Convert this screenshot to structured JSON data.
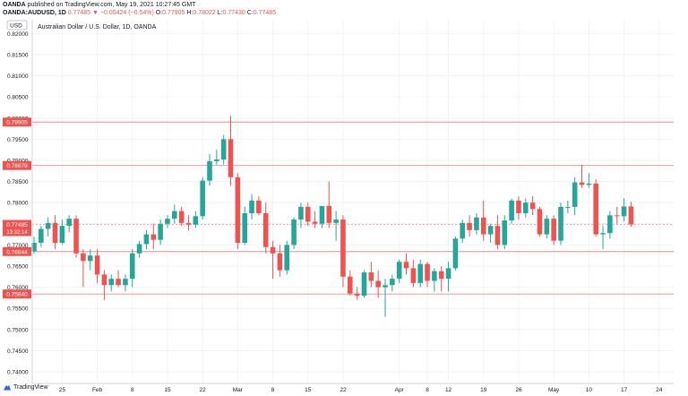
{
  "header": {
    "publisher_prefix": "OANDA",
    "publisher_text": " published on TradingView.com, May 19, 2021 10:27:45 GMT",
    "symbol": "OANDA:AUDUSD, 1D",
    "close_change": "0.77485 ▼ −0.00424 (−0.54%)",
    "o_label": "O:",
    "o_value": "0.77905",
    "h_label": "H:",
    "h_value": "0.78022",
    "l_label": "L:",
    "l_value": "0.77430",
    "c_label": "C:",
    "c_value": "0.77485"
  },
  "footer": {
    "brand": "TradingView"
  },
  "colors": {
    "up": "#26a69a",
    "down": "#ef5350",
    "line": "#f08a8a",
    "grid": "#eef0f3",
    "text": "#131722"
  },
  "chart_data": {
    "type": "candlestick",
    "title": "Australian Dollar / U.S. Dollar, 1D, OANDA",
    "currency_badge": "USD",
    "ylim": [
      0.73725,
      0.82325
    ],
    "y_ticks": [
      "0.82000",
      "0.81500",
      "0.81000",
      "0.80500",
      "0.80000",
      "0.79500",
      "0.79000",
      "0.78500",
      "0.78000",
      "0.77500",
      "0.77000",
      "0.76500",
      "0.76000",
      "0.75500",
      "0.75000",
      "0.74500",
      "0.74000"
    ],
    "x_ticks": [
      {
        "label": "25",
        "i": 4
      },
      {
        "label": "Feb",
        "i": 9
      },
      {
        "label": "8",
        "i": 14
      },
      {
        "label": "15",
        "i": 19
      },
      {
        "label": "22",
        "i": 24
      },
      {
        "label": "Mar",
        "i": 29
      },
      {
        "label": "8",
        "i": 34
      },
      {
        "label": "15",
        "i": 39
      },
      {
        "label": "22",
        "i": 44
      },
      {
        "label": "Apr",
        "i": 52
      },
      {
        "label": "8",
        "i": 56
      },
      {
        "label": "12",
        "i": 59
      },
      {
        "label": "19",
        "i": 64
      },
      {
        "label": "26",
        "i": 69
      },
      {
        "label": "May",
        "i": 74
      },
      {
        "label": "10",
        "i": 79
      },
      {
        "label": "17",
        "i": 84
      },
      {
        "label": "24",
        "i": 89
      }
    ],
    "price_lines": [
      {
        "value": 0.79905,
        "label": "0.79905"
      },
      {
        "value": 0.78879,
        "label": "0.78879"
      },
      {
        "value": 0.76844,
        "label": "0.76844"
      },
      {
        "value": 0.7584,
        "label": "0.75840"
      }
    ],
    "current_price": {
      "value": 0.77485,
      "label": "0.77485",
      "countdown": "13:32:14"
    },
    "candles": [
      {
        "o": 0.7685,
        "h": 0.772,
        "l": 0.768,
        "c": 0.7705
      },
      {
        "o": 0.7705,
        "h": 0.7745,
        "l": 0.7695,
        "c": 0.7738
      },
      {
        "o": 0.7738,
        "h": 0.7765,
        "l": 0.772,
        "c": 0.7752
      },
      {
        "o": 0.7752,
        "h": 0.777,
        "l": 0.769,
        "c": 0.7705
      },
      {
        "o": 0.7705,
        "h": 0.776,
        "l": 0.77,
        "c": 0.7745
      },
      {
        "o": 0.7745,
        "h": 0.777,
        "l": 0.773,
        "c": 0.7762
      },
      {
        "o": 0.7762,
        "h": 0.777,
        "l": 0.767,
        "c": 0.768
      },
      {
        "o": 0.768,
        "h": 0.769,
        "l": 0.76,
        "c": 0.7662
      },
      {
        "o": 0.7662,
        "h": 0.769,
        "l": 0.764,
        "c": 0.7675
      },
      {
        "o": 0.7675,
        "h": 0.769,
        "l": 0.761,
        "c": 0.763
      },
      {
        "o": 0.763,
        "h": 0.764,
        "l": 0.757,
        "c": 0.7605
      },
      {
        "o": 0.7605,
        "h": 0.763,
        "l": 0.759,
        "c": 0.762
      },
      {
        "o": 0.762,
        "h": 0.764,
        "l": 0.76,
        "c": 0.7605
      },
      {
        "o": 0.7605,
        "h": 0.763,
        "l": 0.759,
        "c": 0.762
      },
      {
        "o": 0.762,
        "h": 0.769,
        "l": 0.76,
        "c": 0.768
      },
      {
        "o": 0.768,
        "h": 0.771,
        "l": 0.767,
        "c": 0.7702
      },
      {
        "o": 0.7702,
        "h": 0.7735,
        "l": 0.769,
        "c": 0.7725
      },
      {
        "o": 0.7725,
        "h": 0.775,
        "l": 0.769,
        "c": 0.7712
      },
      {
        "o": 0.7712,
        "h": 0.776,
        "l": 0.77,
        "c": 0.775
      },
      {
        "o": 0.775,
        "h": 0.777,
        "l": 0.774,
        "c": 0.7762
      },
      {
        "o": 0.7762,
        "h": 0.7795,
        "l": 0.775,
        "c": 0.778
      },
      {
        "o": 0.778,
        "h": 0.779,
        "l": 0.7745,
        "c": 0.7752
      },
      {
        "o": 0.7752,
        "h": 0.777,
        "l": 0.7735,
        "c": 0.7748
      },
      {
        "o": 0.7748,
        "h": 0.778,
        "l": 0.774,
        "c": 0.7768
      },
      {
        "o": 0.7768,
        "h": 0.786,
        "l": 0.776,
        "c": 0.7852
      },
      {
        "o": 0.7852,
        "h": 0.7915,
        "l": 0.784,
        "c": 0.7898
      },
      {
        "o": 0.7898,
        "h": 0.7925,
        "l": 0.789,
        "c": 0.7902
      },
      {
        "o": 0.7902,
        "h": 0.796,
        "l": 0.789,
        "c": 0.795
      },
      {
        "o": 0.795,
        "h": 0.8005,
        "l": 0.784,
        "c": 0.786
      },
      {
        "o": 0.786,
        "h": 0.787,
        "l": 0.769,
        "c": 0.7705
      },
      {
        "o": 0.7705,
        "h": 0.779,
        "l": 0.77,
        "c": 0.7775
      },
      {
        "o": 0.7775,
        "h": 0.782,
        "l": 0.776,
        "c": 0.7805
      },
      {
        "o": 0.7805,
        "h": 0.7815,
        "l": 0.777,
        "c": 0.7775
      },
      {
        "o": 0.7775,
        "h": 0.78,
        "l": 0.768,
        "c": 0.7695
      },
      {
        "o": 0.7695,
        "h": 0.771,
        "l": 0.762,
        "c": 0.768
      },
      {
        "o": 0.768,
        "h": 0.77,
        "l": 0.7625,
        "c": 0.764
      },
      {
        "o": 0.764,
        "h": 0.771,
        "l": 0.763,
        "c": 0.77
      },
      {
        "o": 0.77,
        "h": 0.7765,
        "l": 0.769,
        "c": 0.776
      },
      {
        "o": 0.776,
        "h": 0.78,
        "l": 0.774,
        "c": 0.779
      },
      {
        "o": 0.779,
        "h": 0.78,
        "l": 0.7745,
        "c": 0.7755
      },
      {
        "o": 0.7755,
        "h": 0.778,
        "l": 0.774,
        "c": 0.775
      },
      {
        "o": 0.775,
        "h": 0.779,
        "l": 0.774,
        "c": 0.7792
      },
      {
        "o": 0.7792,
        "h": 0.785,
        "l": 0.774,
        "c": 0.7752
      },
      {
        "o": 0.7752,
        "h": 0.778,
        "l": 0.771,
        "c": 0.776
      },
      {
        "o": 0.776,
        "h": 0.777,
        "l": 0.76,
        "c": 0.7625
      },
      {
        "o": 0.7625,
        "h": 0.764,
        "l": 0.758,
        "c": 0.7585
      },
      {
        "o": 0.7585,
        "h": 0.76,
        "l": 0.757,
        "c": 0.758
      },
      {
        "o": 0.758,
        "h": 0.764,
        "l": 0.7575,
        "c": 0.7635
      },
      {
        "o": 0.7635,
        "h": 0.766,
        "l": 0.76,
        "c": 0.7615
      },
      {
        "o": 0.7615,
        "h": 0.764,
        "l": 0.7575,
        "c": 0.76
      },
      {
        "o": 0.76,
        "h": 0.762,
        "l": 0.753,
        "c": 0.7605
      },
      {
        "o": 0.7605,
        "h": 0.763,
        "l": 0.759,
        "c": 0.762
      },
      {
        "o": 0.762,
        "h": 0.7665,
        "l": 0.761,
        "c": 0.766
      },
      {
        "o": 0.766,
        "h": 0.768,
        "l": 0.763,
        "c": 0.7645
      },
      {
        "o": 0.7645,
        "h": 0.7665,
        "l": 0.76,
        "c": 0.761
      },
      {
        "o": 0.761,
        "h": 0.7665,
        "l": 0.76,
        "c": 0.7655
      },
      {
        "o": 0.7655,
        "h": 0.766,
        "l": 0.76,
        "c": 0.7615
      },
      {
        "o": 0.7615,
        "h": 0.7645,
        "l": 0.759,
        "c": 0.7638
      },
      {
        "o": 0.7638,
        "h": 0.765,
        "l": 0.759,
        "c": 0.762
      },
      {
        "o": 0.762,
        "h": 0.766,
        "l": 0.759,
        "c": 0.7645
      },
      {
        "o": 0.7645,
        "h": 0.772,
        "l": 0.764,
        "c": 0.7715
      },
      {
        "o": 0.7715,
        "h": 0.776,
        "l": 0.7705,
        "c": 0.7752
      },
      {
        "o": 0.7752,
        "h": 0.777,
        "l": 0.772,
        "c": 0.7735
      },
      {
        "o": 0.7735,
        "h": 0.7775,
        "l": 0.7725,
        "c": 0.7765
      },
      {
        "o": 0.7765,
        "h": 0.7805,
        "l": 0.771,
        "c": 0.7725
      },
      {
        "o": 0.7725,
        "h": 0.775,
        "l": 0.7705,
        "c": 0.7745
      },
      {
        "o": 0.7745,
        "h": 0.777,
        "l": 0.769,
        "c": 0.77
      },
      {
        "o": 0.77,
        "h": 0.777,
        "l": 0.769,
        "c": 0.7758
      },
      {
        "o": 0.7758,
        "h": 0.781,
        "l": 0.775,
        "c": 0.7805
      },
      {
        "o": 0.7805,
        "h": 0.7815,
        "l": 0.776,
        "c": 0.7775
      },
      {
        "o": 0.7775,
        "h": 0.781,
        "l": 0.7765,
        "c": 0.78
      },
      {
        "o": 0.78,
        "h": 0.7815,
        "l": 0.777,
        "c": 0.7785
      },
      {
        "o": 0.7785,
        "h": 0.779,
        "l": 0.772,
        "c": 0.7725
      },
      {
        "o": 0.7725,
        "h": 0.777,
        "l": 0.7715,
        "c": 0.7762
      },
      {
        "o": 0.7762,
        "h": 0.777,
        "l": 0.77,
        "c": 0.771
      },
      {
        "o": 0.771,
        "h": 0.78,
        "l": 0.77,
        "c": 0.779
      },
      {
        "o": 0.779,
        "h": 0.7805,
        "l": 0.7775,
        "c": 0.779
      },
      {
        "o": 0.779,
        "h": 0.786,
        "l": 0.777,
        "c": 0.7848
      },
      {
        "o": 0.7848,
        "h": 0.789,
        "l": 0.7835,
        "c": 0.7842
      },
      {
        "o": 0.7842,
        "h": 0.787,
        "l": 0.7835,
        "c": 0.7845
      },
      {
        "o": 0.7845,
        "h": 0.7855,
        "l": 0.772,
        "c": 0.7725
      },
      {
        "o": 0.7725,
        "h": 0.7745,
        "l": 0.769,
        "c": 0.7728
      },
      {
        "o": 0.7728,
        "h": 0.778,
        "l": 0.7715,
        "c": 0.777
      },
      {
        "o": 0.777,
        "h": 0.779,
        "l": 0.775,
        "c": 0.7768
      },
      {
        "o": 0.7768,
        "h": 0.781,
        "l": 0.7755,
        "c": 0.7791
      },
      {
        "o": 0.7791,
        "h": 0.7802,
        "l": 0.7743,
        "c": 0.77485
      }
    ]
  }
}
